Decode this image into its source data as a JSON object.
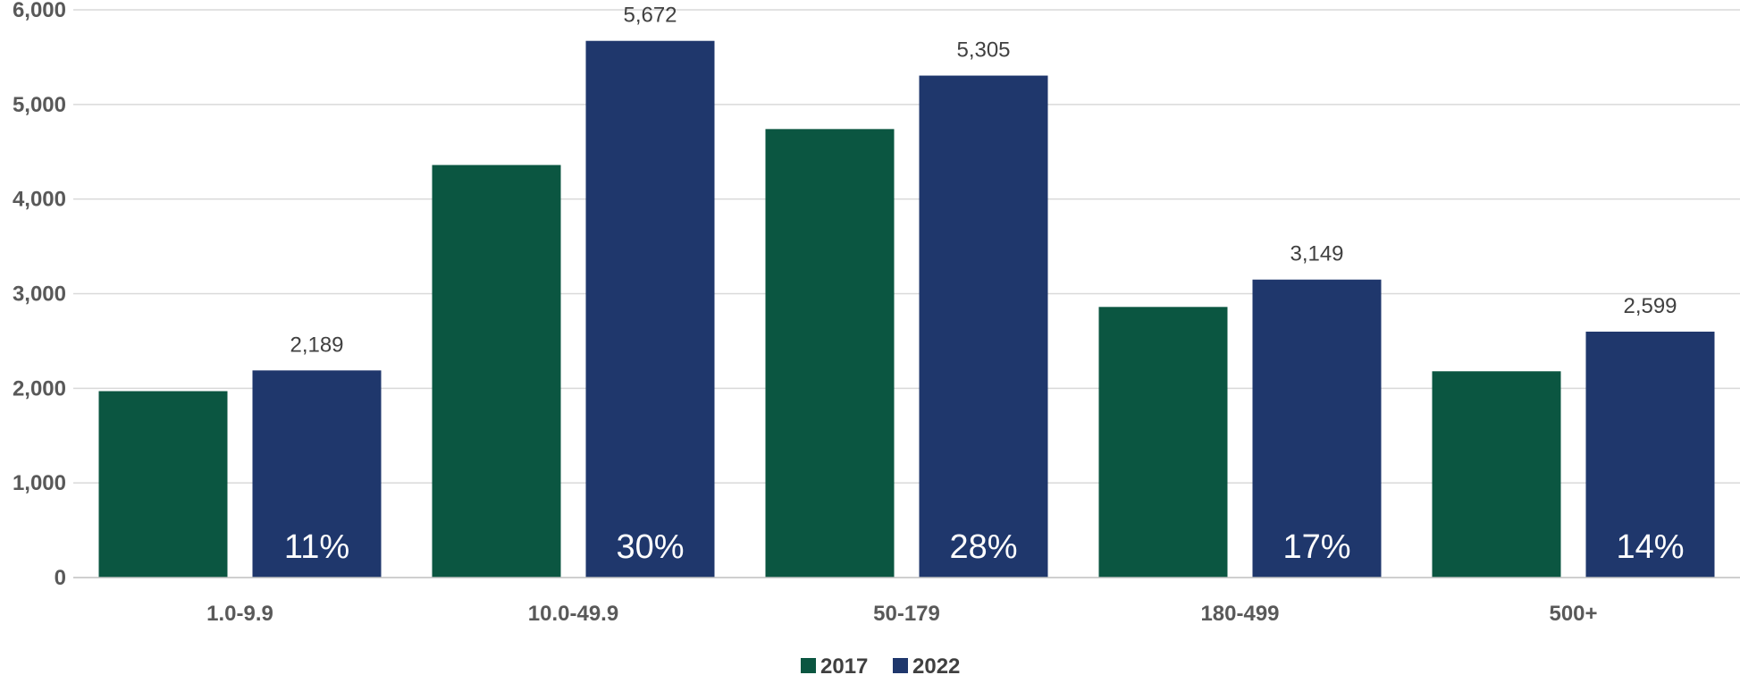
{
  "chart_data": {
    "type": "bar",
    "title": "",
    "xlabel": "",
    "ylabel": "",
    "categories": [
      "1.0-9.9",
      "10.0-49.9",
      "50-179",
      "180-499",
      "500+"
    ],
    "series": [
      {
        "name": "2017",
        "color": "#0b5641",
        "values": [
          1970,
          4360,
          4740,
          2860,
          2180
        ]
      },
      {
        "name": "2022",
        "color": "#1f376c",
        "values": [
          2189,
          5672,
          5305,
          3149,
          2599
        ],
        "value_labels": [
          "2,189",
          "5,672",
          "5,305",
          "3,149",
          "2,599"
        ],
        "share_labels": [
          "11%",
          "30%",
          "28%",
          "17%",
          "14%"
        ]
      }
    ],
    "ylim": [
      0,
      6000
    ],
    "yticks": [
      0,
      1000,
      2000,
      3000,
      4000,
      5000,
      6000
    ],
    "ytick_labels": [
      "0",
      "1,000",
      "2,000",
      "3,000",
      "4,000",
      "5,000",
      "6,000"
    ],
    "grid": true,
    "legend": "bottom-center"
  }
}
